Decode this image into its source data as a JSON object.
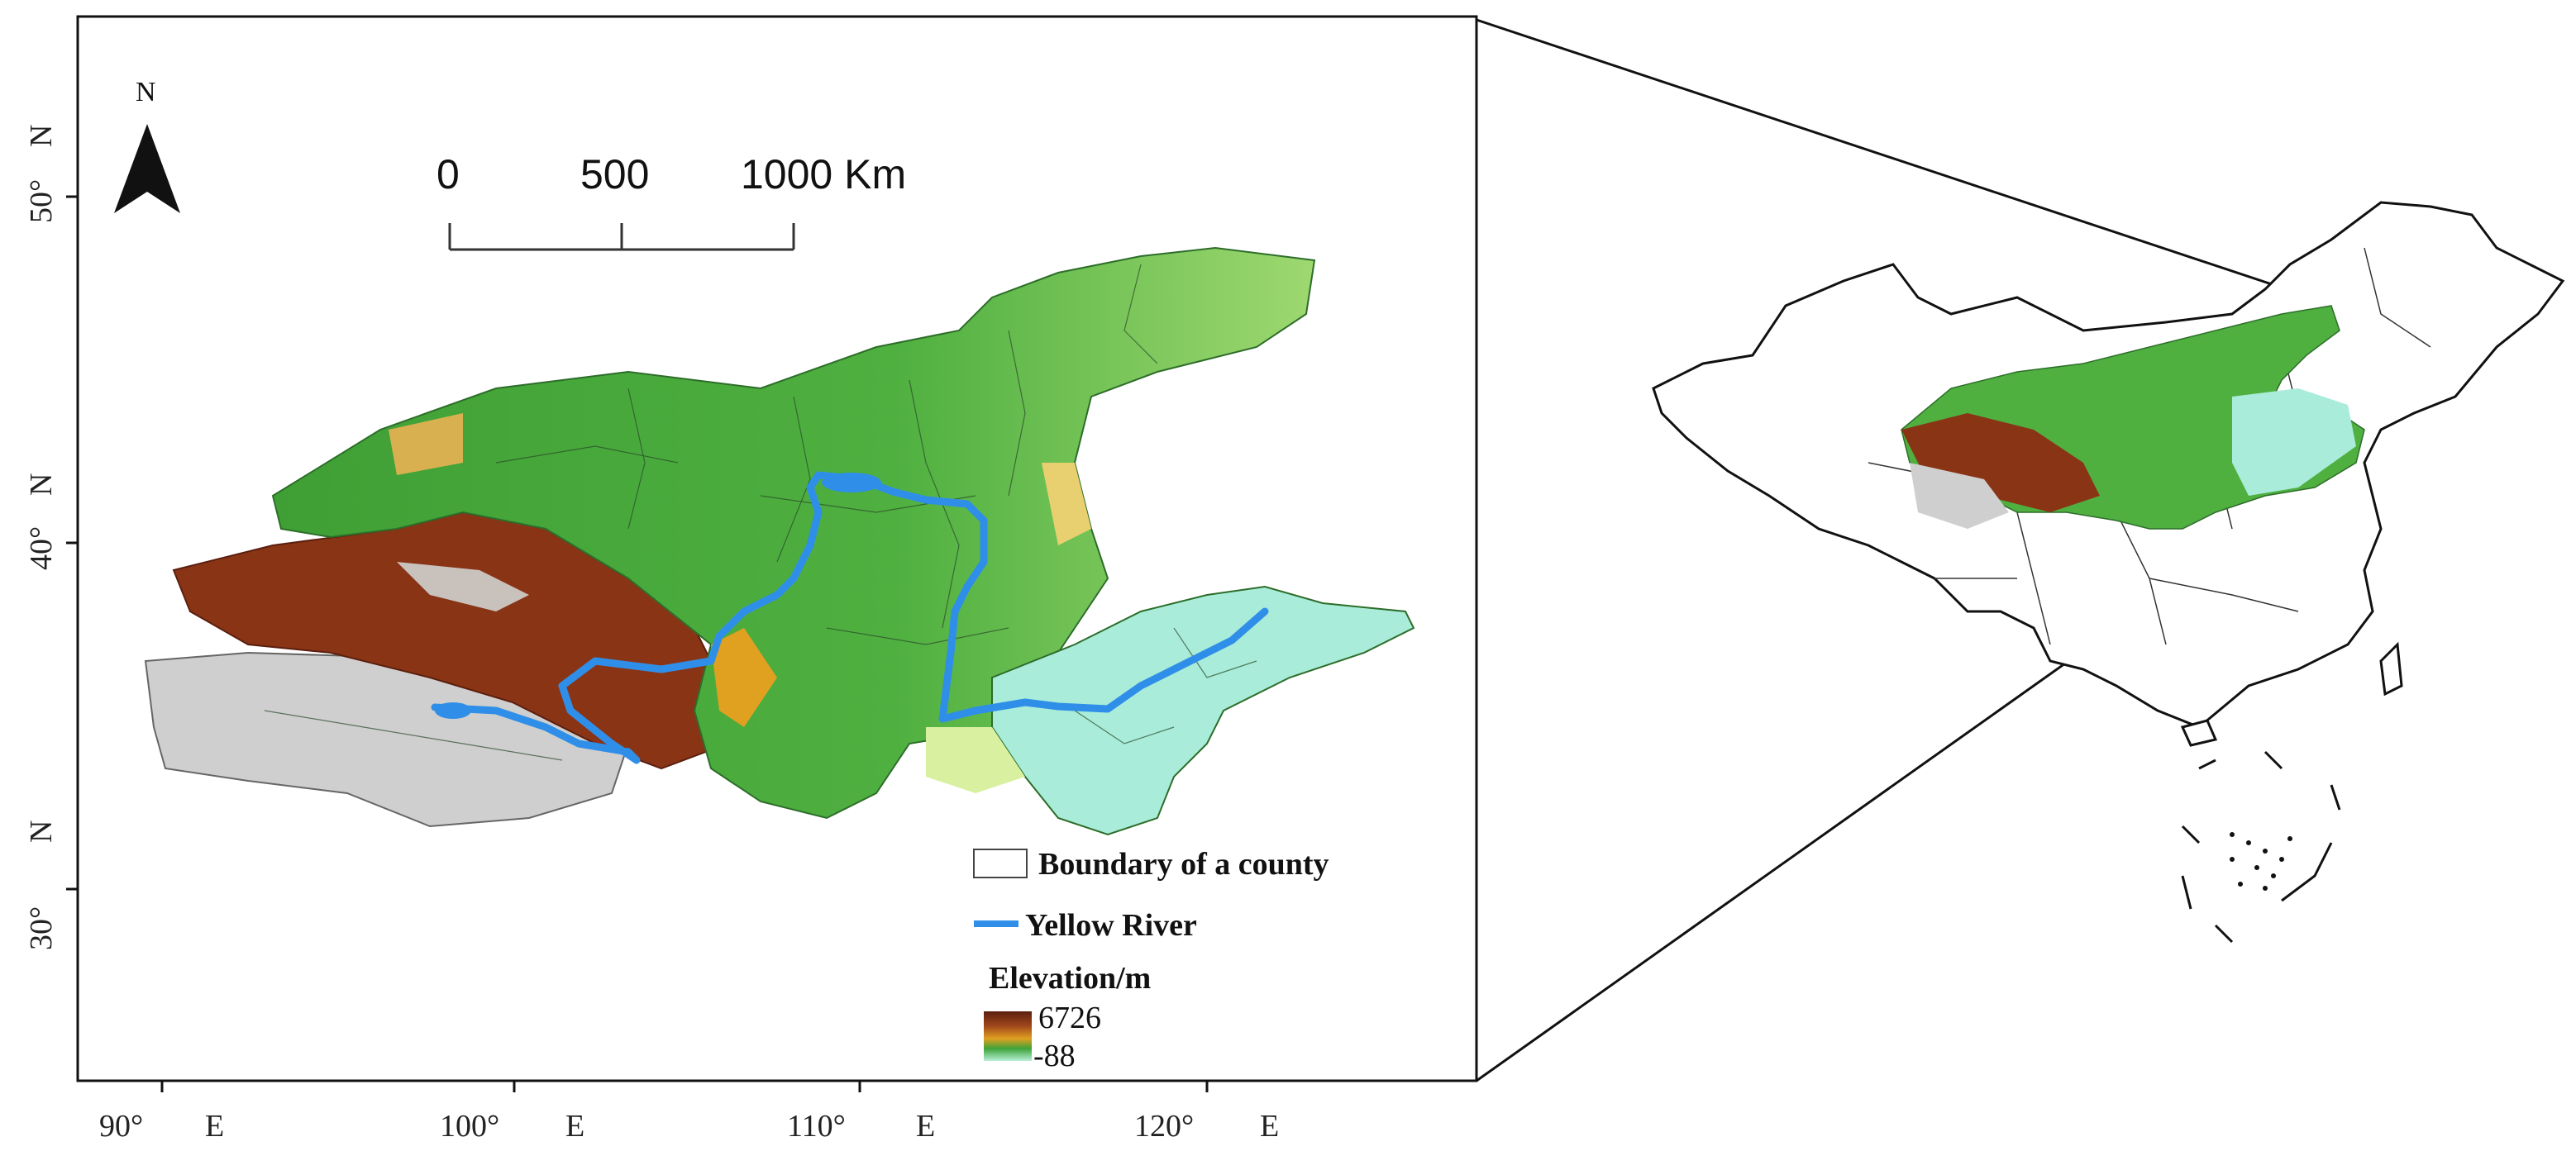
{
  "map": {
    "north_label": "N",
    "scale_bar": {
      "labels": [
        "0",
        "500",
        "1000 Km"
      ]
    },
    "latitude_labels": [
      {
        "deg": "50°",
        "hemi": "N"
      },
      {
        "deg": "40°",
        "hemi": "N"
      },
      {
        "deg": "30°",
        "hemi": "N"
      }
    ],
    "longitude_labels": [
      {
        "deg": "90°",
        "hemi": "E"
      },
      {
        "deg": "100°",
        "hemi": "E"
      },
      {
        "deg": "110°",
        "hemi": "E"
      },
      {
        "deg": "120°",
        "hemi": "E"
      }
    ],
    "legend": {
      "county_label": "Boundary of a county",
      "river_label": "Yellow River",
      "elevation_title": "Elevation/m",
      "elevation_max": "6726",
      "elevation_min": "-88"
    },
    "colors": {
      "river": "#2f8fe8",
      "high_elevation": "#7a2a12",
      "mid_elevation": "#3ea33a",
      "low_elevation": "#a8ecd8",
      "snow_elevation": "#c8c8c8"
    }
  }
}
